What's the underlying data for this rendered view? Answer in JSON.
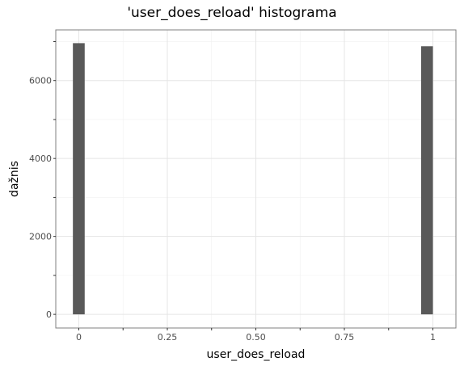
{
  "chart_data": {
    "type": "bar",
    "title": "'user_does_reload' histograma",
    "xlabel": "user_does_reload",
    "ylabel": "dažnis",
    "xlim": [
      -0.065,
      1.065
    ],
    "ylim": [
      -350,
      7300
    ],
    "x_ticks": [
      "0",
      "0.25",
      "0.50",
      "0.75",
      "1"
    ],
    "x_tick_values": [
      0,
      0.25,
      0.5,
      0.75,
      1
    ],
    "y_ticks": [
      "0",
      "2000",
      "4000",
      "6000"
    ],
    "y_tick_values": [
      0,
      2000,
      4000,
      6000
    ],
    "bins": [
      {
        "x_start": -0.016667,
        "x_end": 0.016667,
        "count": 6960
      },
      {
        "x_start": 0.966667,
        "x_end": 1.0,
        "count": 6880
      }
    ],
    "grid": true,
    "bar_color": "#595959"
  }
}
